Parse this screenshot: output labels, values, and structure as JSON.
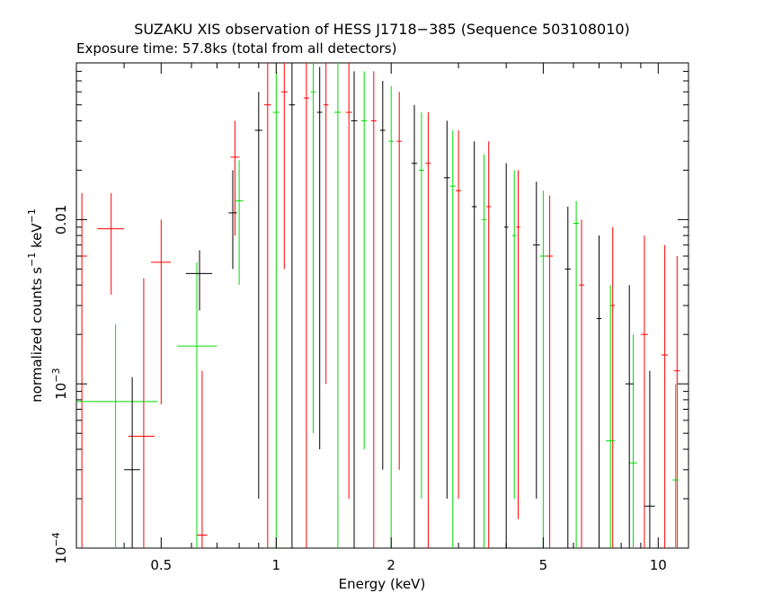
{
  "chart_data": {
    "type": "scatter",
    "title": "SUZAKU XIS observation of HESS J1718−385 (Sequence 503108010)",
    "subtitle": "Exposure time: 57.8ks (total from all detectors)",
    "xlabel": "Energy (keV)",
    "ylabel": {
      "text": "normalized counts s",
      "sup1": "−1",
      "mid": " keV",
      "sup2": "−1"
    },
    "x_scale": "log",
    "y_scale": "log",
    "xlim": [
      0.3,
      12
    ],
    "ylim": [
      0.0001,
      0.09
    ],
    "x_ticks": [
      {
        "value": 0.5,
        "label": "0.5"
      },
      {
        "value": 1,
        "label": "1"
      },
      {
        "value": 2,
        "label": "2"
      },
      {
        "value": 5,
        "label": "5"
      },
      {
        "value": 10,
        "label": "10"
      }
    ],
    "y_ticks": [
      {
        "value": 0.0001,
        "base": "10",
        "exp": "−4"
      },
      {
        "value": 0.001,
        "base": "10",
        "exp": "−3"
      },
      {
        "value": 0.01,
        "label": "0.01"
      }
    ],
    "grid": false,
    "legend": "none",
    "series": [
      {
        "color": "#ff0000",
        "points": [
          {
            "x": 0.31,
            "xlo": 0.3,
            "xhi": 0.32,
            "y": 0.006,
            "ylo": 0.0001,
            "yhi": 0.0145
          },
          {
            "x": 0.37,
            "xlo": 0.34,
            "xhi": 0.4,
            "y": 0.0088,
            "ylo": 0.0035,
            "yhi": 0.0145
          },
          {
            "x": 0.45,
            "xlo": 0.41,
            "xhi": 0.48,
            "y": 0.00048,
            "ylo": 0.0001,
            "yhi": 0.0044
          },
          {
            "x": 0.5,
            "xlo": 0.47,
            "xhi": 0.53,
            "y": 0.0055,
            "ylo": 0.00075,
            "yhi": 0.01
          },
          {
            "x": 0.64,
            "xlo": 0.62,
            "xhi": 0.66,
            "y": 0.00012,
            "ylo": 0.0001,
            "yhi": 0.0012
          },
          {
            "x": 0.78,
            "xlo": 0.76,
            "xhi": 0.8,
            "y": 0.024,
            "ylo": 0.008,
            "yhi": 0.04
          },
          {
            "x": 0.95,
            "xlo": 0.93,
            "xhi": 0.97,
            "y": 0.05,
            "ylo": 0.0001,
            "yhi": 0.09
          },
          {
            "x": 1.05,
            "xlo": 1.03,
            "xhi": 1.07,
            "y": 0.06,
            "ylo": 0.005,
            "yhi": 0.09
          },
          {
            "x": 1.2,
            "xlo": 1.18,
            "xhi": 1.22,
            "y": 0.055,
            "ylo": 0.0001,
            "yhi": 0.09
          },
          {
            "x": 1.35,
            "xlo": 1.33,
            "xhi": 1.37,
            "y": 0.05,
            "ylo": 0.001,
            "yhi": 0.09
          },
          {
            "x": 1.55,
            "xlo": 1.52,
            "xhi": 1.58,
            "y": 0.045,
            "ylo": 0.0002,
            "yhi": 0.09
          },
          {
            "x": 1.8,
            "xlo": 1.77,
            "xhi": 1.83,
            "y": 0.04,
            "ylo": 0.0001,
            "yhi": 0.08
          },
          {
            "x": 2.1,
            "xlo": 2.07,
            "xhi": 2.13,
            "y": 0.03,
            "ylo": 0.0003,
            "yhi": 0.06
          },
          {
            "x": 2.5,
            "xlo": 2.46,
            "xhi": 2.54,
            "y": 0.022,
            "ylo": 0.0001,
            "yhi": 0.045
          },
          {
            "x": 3.0,
            "xlo": 2.95,
            "xhi": 3.05,
            "y": 0.015,
            "ylo": 0.0002,
            "yhi": 0.035
          },
          {
            "x": 3.6,
            "xlo": 3.55,
            "xhi": 3.65,
            "y": 0.012,
            "ylo": 0.0001,
            "yhi": 0.03
          },
          {
            "x": 4.3,
            "xlo": 4.25,
            "xhi": 4.35,
            "y": 0.009,
            "ylo": 0.00015,
            "yhi": 0.02
          },
          {
            "x": 5.2,
            "xlo": 5.1,
            "xhi": 5.3,
            "y": 0.006,
            "ylo": 0.0001,
            "yhi": 0.014
          },
          {
            "x": 6.3,
            "xlo": 6.2,
            "xhi": 6.4,
            "y": 0.004,
            "ylo": 0.0001,
            "yhi": 0.01
          },
          {
            "x": 7.6,
            "xlo": 7.5,
            "xhi": 7.7,
            "y": 0.003,
            "ylo": 0.0001,
            "yhi": 0.009
          },
          {
            "x": 9.2,
            "xlo": 9.0,
            "xhi": 9.4,
            "y": 0.002,
            "ylo": 0.0001,
            "yhi": 0.008
          },
          {
            "x": 10.4,
            "xlo": 10.2,
            "xhi": 10.6,
            "y": 0.0015,
            "ylo": 0.0001,
            "yhi": 0.007
          },
          {
            "x": 11.2,
            "xlo": 11.0,
            "xhi": 11.4,
            "y": 0.0012,
            "ylo": 0.0001,
            "yhi": 0.006
          }
        ]
      },
      {
        "color": "#00dd00",
        "points": [
          {
            "x": 0.38,
            "xlo": 0.3,
            "xhi": 0.49,
            "y": 0.00078,
            "ylo": 0.0001,
            "yhi": 0.0023
          },
          {
            "x": 0.62,
            "xlo": 0.55,
            "xhi": 0.7,
            "y": 0.0017,
            "ylo": 0.0001,
            "yhi": 0.0055
          },
          {
            "x": 0.8,
            "xlo": 0.78,
            "xhi": 0.82,
            "y": 0.013,
            "ylo": 0.004,
            "yhi": 0.023
          },
          {
            "x": 1.0,
            "xlo": 0.98,
            "xhi": 1.02,
            "y": 0.045,
            "ylo": 0.0001,
            "yhi": 0.08
          },
          {
            "x": 1.25,
            "xlo": 1.23,
            "xhi": 1.27,
            "y": 0.06,
            "ylo": 0.0005,
            "yhi": 0.09
          },
          {
            "x": 1.45,
            "xlo": 1.42,
            "xhi": 1.48,
            "y": 0.045,
            "ylo": 0.0001,
            "yhi": 0.09
          },
          {
            "x": 1.7,
            "xlo": 1.67,
            "xhi": 1.73,
            "y": 0.04,
            "ylo": 0.0004,
            "yhi": 0.08
          },
          {
            "x": 2.0,
            "xlo": 1.97,
            "xhi": 2.03,
            "y": 0.03,
            "ylo": 0.0001,
            "yhi": 0.065
          },
          {
            "x": 2.4,
            "xlo": 2.36,
            "xhi": 2.44,
            "y": 0.02,
            "ylo": 0.0002,
            "yhi": 0.045
          },
          {
            "x": 2.9,
            "xlo": 2.85,
            "xhi": 2.95,
            "y": 0.016,
            "ylo": 0.0001,
            "yhi": 0.035
          },
          {
            "x": 3.5,
            "xlo": 3.45,
            "xhi": 3.55,
            "y": 0.01,
            "ylo": 0.0001,
            "yhi": 0.025
          },
          {
            "x": 4.2,
            "xlo": 4.15,
            "xhi": 4.25,
            "y": 0.008,
            "ylo": 0.0002,
            "yhi": 0.02
          },
          {
            "x": 5.0,
            "xlo": 4.9,
            "xhi": 5.1,
            "y": 0.006,
            "ylo": 0.0001,
            "yhi": 0.015
          },
          {
            "x": 6.1,
            "xlo": 6.0,
            "xhi": 6.2,
            "y": 0.0095,
            "ylo": 0.0001,
            "yhi": 0.013
          },
          {
            "x": 7.5,
            "xlo": 7.3,
            "xhi": 7.7,
            "y": 0.00045,
            "ylo": 0.0001,
            "yhi": 0.004
          },
          {
            "x": 8.6,
            "xlo": 8.4,
            "xhi": 8.8,
            "y": 0.00033,
            "ylo": 0.0001,
            "yhi": 0.002
          },
          {
            "x": 11.1,
            "xlo": 10.9,
            "xhi": 11.3,
            "y": 0.00026,
            "ylo": 0.0001,
            "yhi": 0.001
          }
        ]
      },
      {
        "color": "#000000",
        "points": [
          {
            "x": 0.42,
            "xlo": 0.4,
            "xhi": 0.44,
            "y": 0.0003,
            "ylo": 0.0001,
            "yhi": 0.0011
          },
          {
            "x": 0.63,
            "xlo": 0.58,
            "xhi": 0.68,
            "y": 0.0047,
            "ylo": 0.0028,
            "yhi": 0.0065
          },
          {
            "x": 0.77,
            "xlo": 0.75,
            "xhi": 0.79,
            "y": 0.011,
            "ylo": 0.005,
            "yhi": 0.02
          },
          {
            "x": 0.9,
            "xlo": 0.88,
            "xhi": 0.92,
            "y": 0.035,
            "ylo": 0.0002,
            "yhi": 0.06
          },
          {
            "x": 1.1,
            "xlo": 1.08,
            "xhi": 1.12,
            "y": 0.05,
            "ylo": 0.0001,
            "yhi": 0.09
          },
          {
            "x": 1.3,
            "xlo": 1.28,
            "xhi": 1.32,
            "y": 0.045,
            "ylo": 0.0004,
            "yhi": 0.085
          },
          {
            "x": 1.6,
            "xlo": 1.57,
            "xhi": 1.63,
            "y": 0.04,
            "ylo": 0.0001,
            "yhi": 0.08
          },
          {
            "x": 1.9,
            "xlo": 1.87,
            "xhi": 1.93,
            "y": 0.035,
            "ylo": 0.0003,
            "yhi": 0.07
          },
          {
            "x": 2.3,
            "xlo": 2.26,
            "xhi": 2.34,
            "y": 0.022,
            "ylo": 0.0001,
            "yhi": 0.05
          },
          {
            "x": 2.8,
            "xlo": 2.75,
            "xhi": 2.85,
            "y": 0.018,
            "ylo": 0.0002,
            "yhi": 0.04
          },
          {
            "x": 3.3,
            "xlo": 3.25,
            "xhi": 3.35,
            "y": 0.012,
            "ylo": 0.0001,
            "yhi": 0.03
          },
          {
            "x": 4.0,
            "xlo": 3.95,
            "xhi": 4.05,
            "y": 0.009,
            "ylo": 0.0001,
            "yhi": 0.022
          },
          {
            "x": 4.8,
            "xlo": 4.7,
            "xhi": 4.9,
            "y": 0.007,
            "ylo": 0.0002,
            "yhi": 0.017
          },
          {
            "x": 5.8,
            "xlo": 5.7,
            "xhi": 5.9,
            "y": 0.005,
            "ylo": 0.0001,
            "yhi": 0.012
          },
          {
            "x": 7.0,
            "xlo": 6.9,
            "xhi": 7.1,
            "y": 0.0025,
            "ylo": 0.0001,
            "yhi": 0.008
          },
          {
            "x": 8.4,
            "xlo": 8.2,
            "xhi": 8.6,
            "y": 0.001,
            "ylo": 0.0001,
            "yhi": 0.004
          },
          {
            "x": 9.5,
            "xlo": 9.2,
            "xhi": 9.8,
            "y": 0.00018,
            "ylo": 0.0001,
            "yhi": 0.0012
          }
        ]
      }
    ]
  }
}
